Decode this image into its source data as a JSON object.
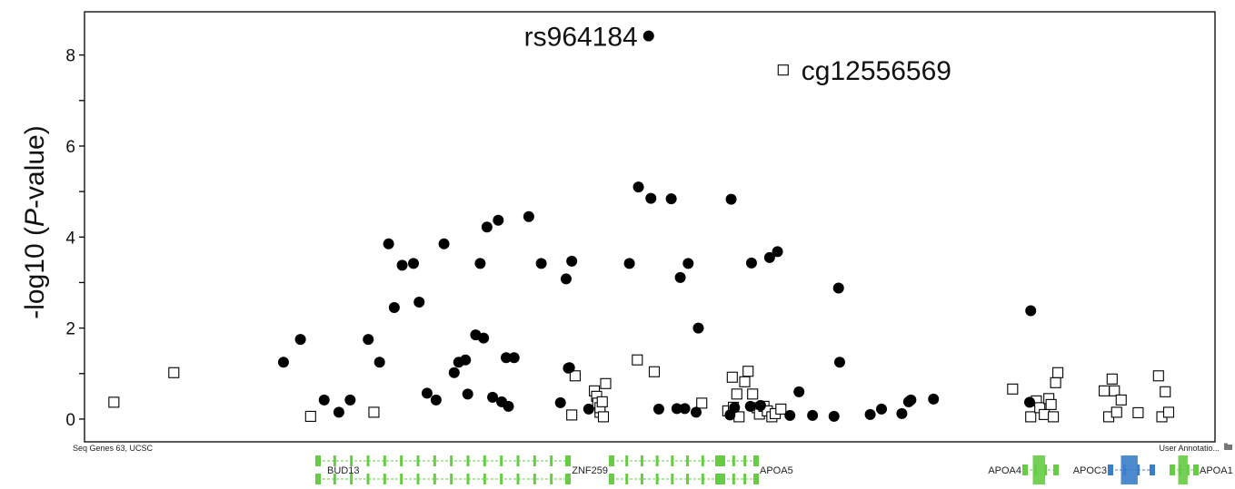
{
  "chart_data": {
    "type": "scatter",
    "title": "",
    "xlabel": "",
    "ylabel": "-log10 (P-value)",
    "ylabel_parts": [
      "-log10 (",
      "P",
      "-value)"
    ],
    "ylim": [
      -0.5,
      8.95
    ],
    "xlim": [
      0,
      100
    ],
    "y_ticks": [
      0,
      2,
      4,
      6,
      8
    ],
    "y_tick_labels": [
      "0",
      "2",
      "4",
      "6",
      "8"
    ],
    "grid": false,
    "annotations": [
      {
        "text": "rs964184",
        "x": 49.9,
        "y": 8.42,
        "series": "SNP"
      },
      {
        "text": "cg12556569",
        "x": 61.8,
        "y": 7.67,
        "series": "CpG"
      }
    ],
    "series": [
      {
        "marker": "filled-circle",
        "color": "#000000",
        "x": [
          49.9,
          17.6,
          19.1,
          21.2,
          22.5,
          23.5,
          25.1,
          26.1,
          26.9,
          27.4,
          28.1,
          29.1,
          29.6,
          30.3,
          31.1,
          31.8,
          32.7,
          33.1,
          33.7,
          33.9,
          34.6,
          35.0,
          35.3,
          35.6,
          36.1,
          36.6,
          36.9,
          37.3,
          37.5,
          38.0,
          39.3,
          40.4,
          42.1,
          42.6,
          42.8,
          42.9,
          43.1,
          44.6,
          48.2,
          49.0,
          50.1,
          50.8,
          51.9,
          52.4,
          52.7,
          53.1,
          53.4,
          54.1,
          54.3,
          57.1,
          57.2,
          57.5,
          58.9,
          59.0,
          59.8,
          60.6,
          61.3,
          62.4,
          63.2,
          64.4,
          66.3,
          66.7,
          66.8,
          69.5,
          70.5,
          72.3,
          72.9,
          73.1,
          75.1,
          83.7,
          83.6
        ],
        "y": [
          8.42,
          1.25,
          1.75,
          0.42,
          0.15,
          0.42,
          1.75,
          1.25,
          3.85,
          2.45,
          3.38,
          3.42,
          2.57,
          0.57,
          0.42,
          3.85,
          1.02,
          1.25,
          1.3,
          0.55,
          1.85,
          3.42,
          1.78,
          4.22,
          0.48,
          4.37,
          0.38,
          1.35,
          0.28,
          1.35,
          4.45,
          3.42,
          0.36,
          3.08,
          1.12,
          1.13,
          3.47,
          0.22,
          3.42,
          5.1,
          4.85,
          0.22,
          4.84,
          0.23,
          3.11,
          0.23,
          3.42,
          0.15,
          2.0,
          0.09,
          4.83,
          0.25,
          0.28,
          3.43,
          0.3,
          3.55,
          3.68,
          0.08,
          0.6,
          0.08,
          0.06,
          2.88,
          1.25,
          0.1,
          0.22,
          0.12,
          0.38,
          0.42,
          0.44,
          2.38,
          0.37
        ]
      },
      {
        "marker": "open-square",
        "color": "#000000",
        "x": [
          61.8,
          2.6,
          7.9,
          20.0,
          25.6,
          43.1,
          43.4,
          45.1,
          45.3,
          45.4,
          45.6,
          45.6,
          45.8,
          45.9,
          46.1,
          48.9,
          50.4,
          54.6,
          56.9,
          57.3,
          57.4,
          57.7,
          57.9,
          58.4,
          58.7,
          59.1,
          59.5,
          59.7,
          60.1,
          60.4,
          60.8,
          61.1,
          61.6,
          82.1,
          83.7,
          84.2,
          84.5,
          84.9,
          85.3,
          85.5,
          85.7,
          85.9,
          86.1,
          90.2,
          90.6,
          90.9,
          91.1,
          91.3,
          91.7,
          93.2,
          95.0,
          95.3,
          95.6,
          95.9
        ],
        "y": [
          7.67,
          0.37,
          1.02,
          0.06,
          0.15,
          0.09,
          0.95,
          0.62,
          0.5,
          0.35,
          0.15,
          0.25,
          0.38,
          0.05,
          0.78,
          1.3,
          1.04,
          0.35,
          0.18,
          0.92,
          0.26,
          0.55,
          0.05,
          0.82,
          1.05,
          0.55,
          0.25,
          0.11,
          0.28,
          0.18,
          0.05,
          0.12,
          0.22,
          0.66,
          0.05,
          0.4,
          0.25,
          0.1,
          0.45,
          0.32,
          0.05,
          0.8,
          1.02,
          0.62,
          0.05,
          0.88,
          0.62,
          0.15,
          0.42,
          0.14,
          0.95,
          0.05,
          0.6,
          0.15
        ]
      }
    ]
  },
  "gene_track": {
    "track_title": "Seq Genes 63, UCSC",
    "right_label": "User Annotatio...",
    "right_icon": "folder-icon",
    "genes": [
      {
        "name": "BUD13",
        "color": "#66cc44",
        "start": 350,
        "end": 625,
        "label_side": "inside"
      },
      {
        "name": "ZNF259",
        "color": "#66cc44",
        "start": 673,
        "end": 790,
        "label_side": "left"
      },
      {
        "name": "APOA5",
        "color": "#66cc44",
        "start": 795,
        "end": 832,
        "label_side": "right"
      },
      {
        "name": "APOA4",
        "color": "#66cc44",
        "start": 1128,
        "end": 1162,
        "label_side": "left"
      },
      {
        "name": "APOC3",
        "color": "#3a7ec8",
        "start": 1222,
        "end": 1268,
        "label_side": "left"
      },
      {
        "name": "APOA1",
        "color": "#66cc44",
        "start": 1290,
        "end": 1316,
        "label_side": "right"
      }
    ]
  }
}
